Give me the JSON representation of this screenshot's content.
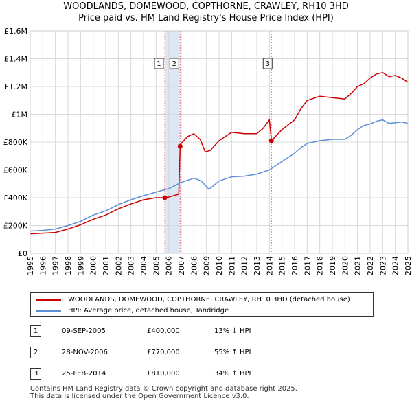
{
  "title_line1": "WOODLANDS, DOMEWOOD, COPTHORNE, CRAWLEY, RH10 3HD",
  "title_line2": "Price paid vs. HM Land Registry's House Price Index (HPI)",
  "legend": {
    "property": "WOODLANDS, DOMEWOOD, COPTHORNE, CRAWLEY, RH10 3HD (detached house)",
    "hpi": "HPI: Average price, detached house, Tandridge"
  },
  "transactions": [
    {
      "num": "1",
      "date": "09-SEP-2005",
      "price": "£400,000",
      "hpi": "13% ↓ HPI"
    },
    {
      "num": "2",
      "date": "28-NOV-2006",
      "price": "£770,000",
      "hpi": "55% ↑ HPI"
    },
    {
      "num": "3",
      "date": "25-FEB-2014",
      "price": "£810,000",
      "hpi": "34% ↑ HPI"
    }
  ],
  "footer": {
    "line1": "Contains HM Land Registry data © Crown copyright and database right 2025.",
    "line2": "This data is licensed under the Open Government Licence v3.0."
  },
  "colors": {
    "property": "#cc0000",
    "hpi": "#5b8ed6",
    "shade": "#dde6f5",
    "marker_line": "#e07080"
  },
  "chart_data": {
    "type": "line",
    "xlim": [
      1995,
      2025
    ],
    "ylim": [
      0,
      1600000
    ],
    "x_ticks": [
      "1995",
      "1996",
      "1997",
      "1998",
      "1999",
      "2000",
      "2001",
      "2002",
      "2003",
      "2004",
      "2005",
      "2006",
      "2007",
      "2008",
      "2009",
      "2010",
      "2011",
      "2012",
      "2013",
      "2014",
      "2015",
      "2016",
      "2017",
      "2018",
      "2019",
      "2020",
      "2021",
      "2022",
      "2023",
      "2024",
      "2025"
    ],
    "y_ticks": [
      {
        "value": 0,
        "label": "£0"
      },
      {
        "value": 200000,
        "label": "£200K"
      },
      {
        "value": 400000,
        "label": "£400K"
      },
      {
        "value": 600000,
        "label": "£600K"
      },
      {
        "value": 800000,
        "label": "£800K"
      },
      {
        "value": 1000000,
        "label": "£1M"
      },
      {
        "value": 1200000,
        "label": "£1.2M"
      },
      {
        "value": 1400000,
        "label": "£1.4M"
      },
      {
        "value": 1600000,
        "label": "£1.6M"
      }
    ],
    "shaded_ranges": [
      [
        2005.69,
        2006.91
      ]
    ],
    "series": [
      {
        "name": "property",
        "x": [
          1995,
          1996,
          1997,
          1998,
          1999,
          2000,
          2001,
          2002,
          2003,
          2004,
          2005,
          2005.69,
          2006,
          2006.8,
          2006.91,
          2007,
          2007.5,
          2008,
          2008.5,
          2008.9,
          2009.3,
          2010,
          2011,
          2012,
          2013,
          2013.5,
          2014,
          2014.16,
          2015,
          2016,
          2016.5,
          2017,
          2018,
          2019,
          2020,
          2020.5,
          2021,
          2021.5,
          2022,
          2022.5,
          2023,
          2023.5,
          2024,
          2024.5,
          2025
        ],
        "values": [
          140000,
          145000,
          150000,
          175000,
          205000,
          245000,
          275000,
          320000,
          355000,
          385000,
          400000,
          400000,
          405000,
          425000,
          770000,
          790000,
          840000,
          860000,
          820000,
          730000,
          740000,
          810000,
          870000,
          860000,
          860000,
          900000,
          960000,
          810000,
          890000,
          960000,
          1040000,
          1100000,
          1130000,
          1120000,
          1110000,
          1150000,
          1200000,
          1220000,
          1260000,
          1290000,
          1300000,
          1270000,
          1280000,
          1260000,
          1230000
        ]
      },
      {
        "name": "hpi",
        "x": [
          1995,
          1996,
          1997,
          1998,
          1999,
          2000,
          2001,
          2002,
          2003,
          2004,
          2005,
          2006,
          2007,
          2008,
          2008.6,
          2009.2,
          2010,
          2011,
          2012,
          2013,
          2014,
          2015,
          2016,
          2016.5,
          2017,
          2018,
          2019,
          2020,
          2020.5,
          2021,
          2021.5,
          2022,
          2022.5,
          2023,
          2023.5,
          2024,
          2024.5,
          2025
        ],
        "values": [
          160000,
          165000,
          175000,
          200000,
          230000,
          275000,
          305000,
          350000,
          385000,
          415000,
          440000,
          465000,
          510000,
          540000,
          520000,
          460000,
          520000,
          550000,
          555000,
          570000,
          600000,
          660000,
          720000,
          760000,
          790000,
          810000,
          820000,
          820000,
          850000,
          890000,
          920000,
          930000,
          950000,
          960000,
          935000,
          940000,
          945000,
          935000
        ]
      }
    ],
    "sales": [
      {
        "num": "1",
        "x": 2005.69,
        "value": 400000
      },
      {
        "num": "2",
        "x": 2006.91,
        "value": 770000
      },
      {
        "num": "3",
        "x": 2014.16,
        "value": 810000
      }
    ]
  }
}
